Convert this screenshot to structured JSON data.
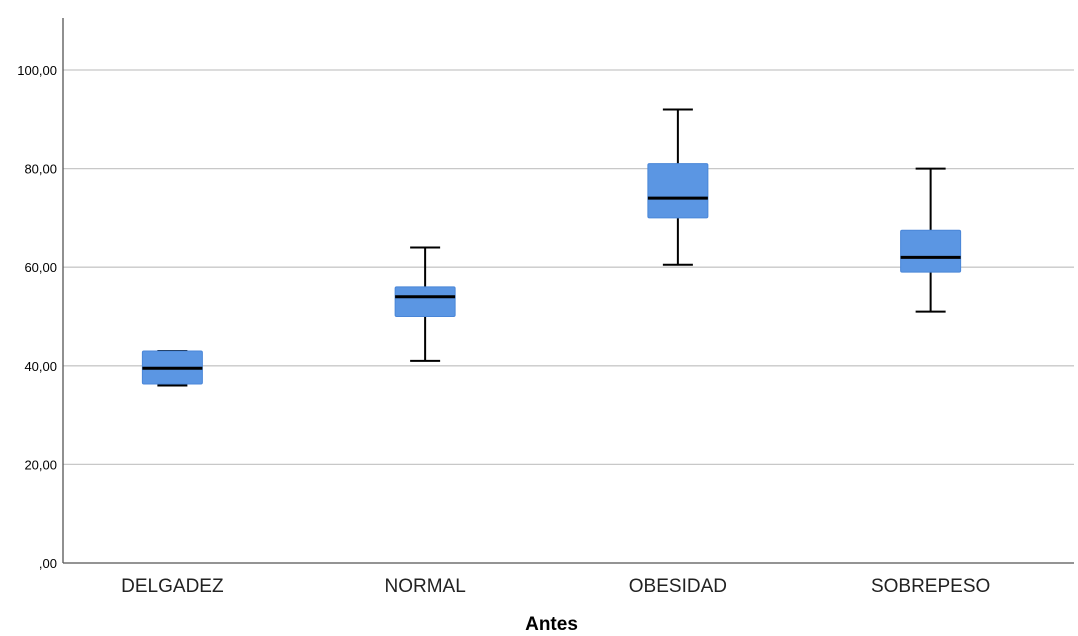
{
  "chart_data": {
    "type": "boxplot",
    "title": "",
    "xlabel": "Antes",
    "ylabel": "",
    "ylim": [
      0,
      110
    ],
    "y_ticks": [
      {
        "value": 0,
        "label": ",00"
      },
      {
        "value": 20,
        "label": "20,00"
      },
      {
        "value": 40,
        "label": "40,00"
      },
      {
        "value": 60,
        "label": "60,00"
      },
      {
        "value": 80,
        "label": "80,00"
      },
      {
        "value": 100,
        "label": "100,00"
      }
    ],
    "grid": true,
    "categories": [
      "DELGADEZ",
      "NORMAL",
      "OBESIDAD",
      "SOBREPESO"
    ],
    "boxes": [
      {
        "category": "DELGADEZ",
        "min": 36,
        "q1": 36.3,
        "median": 39.5,
        "q3": 43,
        "max": 43
      },
      {
        "category": "NORMAL",
        "min": 41,
        "q1": 50,
        "median": 54,
        "q3": 56,
        "max": 64
      },
      {
        "category": "OBESIDAD",
        "min": 60.5,
        "q1": 70,
        "median": 74,
        "q3": 81,
        "max": 92
      },
      {
        "category": "SOBREPESO",
        "min": 51,
        "q1": 59,
        "median": 62,
        "q3": 67.5,
        "max": 80
      }
    ],
    "colors": {
      "box_fill": "#5b96e3",
      "box_stroke": "#4a86d8",
      "median": "#000000",
      "whisker": "#000000",
      "grid": "#c8c8c8",
      "axis": "#555555"
    }
  }
}
